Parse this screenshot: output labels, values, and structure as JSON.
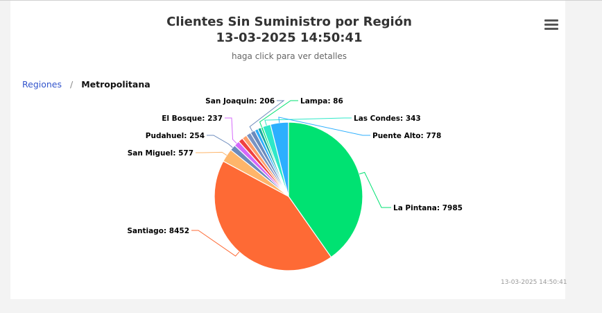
{
  "header": {
    "title_line1": "Clientes Sin Suministro por Región",
    "title_line2": "13-03-2025 14:50:41",
    "subtitle": "haga click para ver detalles",
    "menu_icon": "hamburger-menu-icon"
  },
  "breadcrumb": {
    "parent": "Regiones",
    "separator": "/",
    "current": "Metropolitana"
  },
  "credits": "13-03-2025 14:50:41",
  "chart_data": {
    "type": "pie",
    "title": "Clientes Sin Suministro por Región",
    "subtitle": "haga click para ver detalles",
    "slices": [
      {
        "name": "La Pintana",
        "value": 7985,
        "color": "#00e272"
      },
      {
        "name": "Santiago",
        "value": 8452,
        "color": "#fe6a35"
      },
      {
        "name": "San Miguel",
        "value": 577,
        "color": "#feb56a"
      },
      {
        "name": "Pudahuel",
        "value": 254,
        "color": "#6b8abc"
      },
      {
        "name": "El Bosque",
        "value": 237,
        "color": "#d568fb"
      },
      {
        "name": "",
        "value": 210,
        "color": "#f04040"
      },
      {
        "name": "",
        "value": 208,
        "color": "#fe9f6a"
      },
      {
        "name": "",
        "value": 207,
        "color": "#7a93c2"
      },
      {
        "name": "San Joaquin",
        "value": 206,
        "color": "#6b8abc"
      },
      {
        "name": "",
        "value": 150,
        "color": "#2caffe"
      },
      {
        "name": "",
        "value": 140,
        "color": "#16a8a0"
      },
      {
        "name": "Lampa",
        "value": 86,
        "color": "#00e272"
      },
      {
        "name": "Las Condes",
        "value": 343,
        "color": "#2ee8c8"
      },
      {
        "name": "Puente Alto",
        "value": 778,
        "color": "#2caffe"
      }
    ]
  }
}
